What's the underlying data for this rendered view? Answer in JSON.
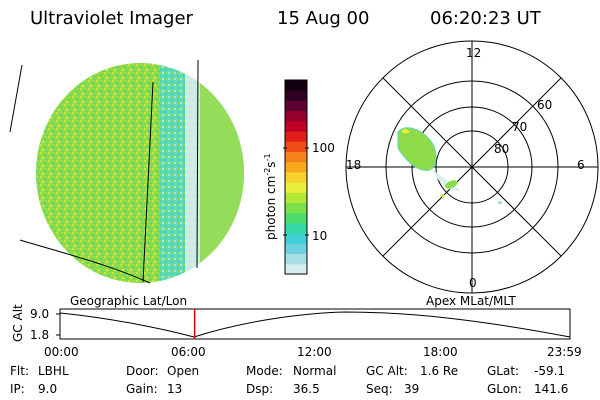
{
  "header": {
    "title": "Ultraviolet Imager",
    "date": "15 Aug 00",
    "time": "06:20:23 UT"
  },
  "colorbar": {
    "label_main": "photon cm",
    "label_exp1": "-2",
    "label_mid": "s",
    "label_exp2": "-1",
    "ticks": [
      "100",
      "10"
    ],
    "colors": [
      "#d7ecef",
      "#a8dfe6",
      "#6fd1e0",
      "#3fcfd4",
      "#35d7a6",
      "#4cdc6e",
      "#7ce14b",
      "#b2e838",
      "#e7ef3c",
      "#f7d12e",
      "#f7a91e",
      "#f48218",
      "#ee4d17",
      "#e01d18",
      "#c00022",
      "#93002c",
      "#5d0032",
      "#300025",
      "#13000f"
    ]
  },
  "left_panel": {
    "caption": "Geographic Lat/Lon"
  },
  "right_panel": {
    "caption": "Apex MLat/MLT",
    "mlt_labels": [
      "12",
      "18",
      "6",
      "0"
    ],
    "lat_labels": [
      "60",
      "70",
      "80"
    ]
  },
  "timeline": {
    "ylabel": "GC Alt",
    "y_ticks": [
      "9.0",
      "1.8"
    ],
    "x_ticks": [
      "00:00",
      "06:00",
      "12:00",
      "18:00",
      "23:59"
    ],
    "current_time_fraction": 0.264
  },
  "info": {
    "flt_label": "Flt:",
    "flt_value": "LBHL",
    "ip_label": "IP:",
    "ip_value": "9.0",
    "door_label": "Door:",
    "door_value": "Open",
    "gain_label": "Gain:",
    "gain_value": "13",
    "mode_label": "Mode:",
    "mode_value": "Normal",
    "dsp_label": "Dsp:",
    "dsp_value": "36.5",
    "gcalt_label": "GC Alt:",
    "gcalt_value": "1.6 Re",
    "seq_label": "Seq:",
    "seq_value": "39",
    "glat_label": "GLat:",
    "glat_value": "-59.1",
    "glon_label": "GLon:",
    "glon_value": "141.6"
  }
}
